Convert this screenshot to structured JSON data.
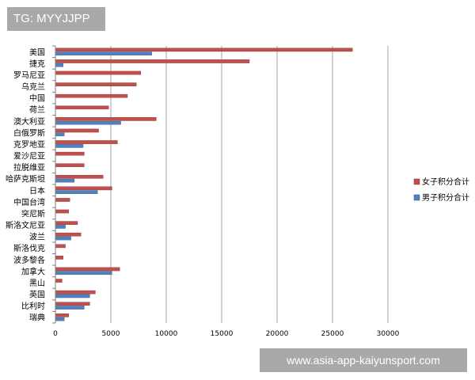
{
  "watermark": "TG: MYYJJPP",
  "footer": "www.asia-app-kaiyunsport.com",
  "colors": {
    "female": "#c0504d",
    "male": "#4f81bd",
    "grid": "#a6a6a6",
    "axis": "#808080"
  },
  "chart_data": {
    "type": "bar",
    "orientation": "horizontal",
    "categories": [
      "美国",
      "捷克",
      "罗马尼亚",
      "乌克兰",
      "中国",
      "荷兰",
      "澳大利亚",
      "白俄罗斯",
      "克罗地亚",
      "爱沙尼亚",
      "拉脱维亚",
      "哈萨克斯坦",
      "日本",
      "中国台湾",
      "突尼斯",
      "斯洛文尼亚",
      "波兰",
      "斯洛伐克",
      "波多黎各",
      "加拿大",
      "黑山",
      "英国",
      "比利时",
      "瑞典"
    ],
    "series": [
      {
        "name": "女子积分合计",
        "color": "#c0504d",
        "values": [
          26800,
          17500,
          7700,
          7300,
          6500,
          4800,
          9100,
          3900,
          5600,
          2600,
          2600,
          4300,
          5100,
          1300,
          1200,
          2000,
          2300,
          900,
          700,
          5800,
          600,
          3600,
          3100,
          1200
        ]
      },
      {
        "name": "男子积分合计",
        "color": "#4f81bd",
        "values": [
          8700,
          700,
          0,
          0,
          0,
          0,
          5900,
          800,
          2500,
          0,
          0,
          1700,
          3800,
          0,
          0,
          900,
          1400,
          0,
          0,
          5100,
          0,
          3100,
          2600,
          800
        ]
      }
    ],
    "xlim": [
      0,
      30000
    ],
    "xticks": [
      0,
      5000,
      10000,
      15000,
      20000,
      25000,
      30000
    ],
    "grid": true,
    "legend": "right"
  }
}
